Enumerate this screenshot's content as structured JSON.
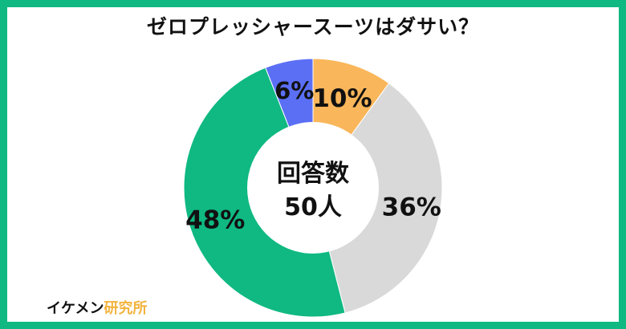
{
  "title": "ゼロプレッシャースーツはダサい？",
  "colors": {
    "frame": "#0fb981",
    "slices": [
      "#f9b65a",
      "#d9d9d9",
      "#0fb981",
      "#5b6ff5"
    ]
  },
  "chart_data": {
    "type": "pie",
    "title": "ゼロプレッシャースーツはダサい？",
    "donut": true,
    "center_label": [
      "回答数",
      "50人"
    ],
    "slices": [
      {
        "value": 10,
        "label": "10%"
      },
      {
        "value": 36,
        "label": "36%"
      },
      {
        "value": 48,
        "label": "48%"
      },
      {
        "value": 6,
        "label": "6%"
      }
    ]
  },
  "brand": {
    "part1": "イケメン",
    "part2": "研究所"
  }
}
